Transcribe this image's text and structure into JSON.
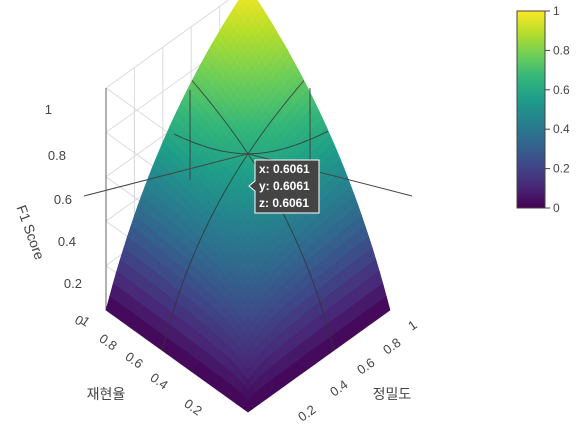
{
  "chart_data": {
    "type": "surface3d",
    "title": "",
    "function": "z = 2*x*y/(x+y)",
    "x_axis": {
      "label": "정밀도",
      "range": [
        0,
        1
      ],
      "ticks": [
        "0.2",
        "0.4",
        "0.6",
        "0.8",
        "1"
      ]
    },
    "y_axis": {
      "label": "재현율",
      "range": [
        0,
        1
      ],
      "ticks": [
        "0.2",
        "0.4",
        "0.6",
        "0.8",
        "1"
      ]
    },
    "z_axis": {
      "label": "F1 Score",
      "range": [
        0,
        1
      ],
      "ticks": [
        "0",
        "0.2",
        "0.4",
        "0.6",
        "0.8",
        "1"
      ]
    },
    "colorscale": "Viridis",
    "colors": [
      "#440154",
      "#482878",
      "#3e4989",
      "#31688e",
      "#26828e",
      "#1f9e89",
      "#35b779",
      "#6ece58",
      "#b5de2b",
      "#fde725"
    ],
    "colorbar": {
      "ticks": [
        "0",
        "0.2",
        "0.4",
        "0.6",
        "0.8",
        "1"
      ],
      "range": [
        0,
        1
      ]
    },
    "grid": true,
    "hover": {
      "x": "x: 0.6061",
      "y": "y: 0.6061",
      "z": "z: 0.6061",
      "x_value": 0.6061,
      "y_value": 0.6061,
      "z_value": 0.6061
    }
  }
}
